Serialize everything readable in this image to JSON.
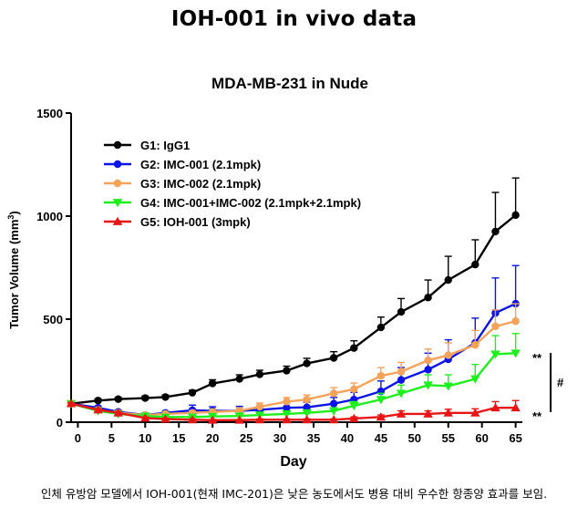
{
  "page": {
    "title": "IOH-001 in vivo data",
    "caption": "인체 유방암 모델에서 IOH-001(현재 IMC-201)은 낮은 농도에서도 병용 대비 우수한 항종양 효과를 보임."
  },
  "chart_data": {
    "type": "line",
    "title": "MDA-MB-231 in Nude",
    "xlabel": "Day",
    "ylabel": "Tumor Volume (mm",
    "ylabel_sup": "3",
    "ylabel_end": ")",
    "xlim": [
      -1,
      66
    ],
    "ylim": [
      0,
      1500
    ],
    "xticks": [
      0,
      5,
      10,
      15,
      20,
      25,
      30,
      35,
      40,
      45,
      50,
      55,
      60,
      65
    ],
    "yticks": [
      0,
      500,
      1000,
      1500
    ],
    "grid": false,
    "legend_position": "top-left",
    "series": [
      {
        "name": "G1: IgG1",
        "color": "#000000",
        "marker": "circle",
        "x": [
          -1,
          3,
          6,
          10,
          13,
          17,
          20,
          24,
          27,
          31,
          34,
          38,
          41,
          45,
          48,
          52,
          55,
          59,
          62,
          65
        ],
        "y": [
          90,
          105,
          112,
          117,
          122,
          143,
          188,
          210,
          232,
          250,
          285,
          312,
          360,
          460,
          535,
          605,
          690,
          765,
          925,
          1005
        ],
        "err": [
          5,
          8,
          8,
          10,
          10,
          12,
          18,
          20,
          20,
          22,
          25,
          30,
          35,
          50,
          65,
          85,
          115,
          120,
          190,
          180
        ]
      },
      {
        "name": "G2: IMC-001 (2.1mpk)",
        "color": "#0a14e6",
        "marker": "circle",
        "x": [
          -1,
          3,
          6,
          10,
          13,
          17,
          20,
          24,
          27,
          31,
          34,
          38,
          41,
          45,
          48,
          52,
          55,
          59,
          62,
          65
        ],
        "y": [
          90,
          70,
          50,
          35,
          45,
          58,
          55,
          55,
          60,
          70,
          72,
          90,
          110,
          150,
          205,
          255,
          305,
          385,
          530,
          575
        ],
        "err": [
          5,
          8,
          8,
          6,
          8,
          25,
          20,
          22,
          20,
          25,
          25,
          30,
          35,
          50,
          60,
          80,
          95,
          120,
          170,
          185
        ]
      },
      {
        "name": "G3: IMC-002 (2.1mpk)",
        "color": "#f5a25b",
        "marker": "circle",
        "x": [
          -1,
          3,
          6,
          10,
          13,
          17,
          20,
          24,
          27,
          31,
          34,
          38,
          41,
          45,
          48,
          52,
          55,
          59,
          62,
          65
        ],
        "y": [
          90,
          60,
          45,
          35,
          40,
          45,
          50,
          55,
          75,
          100,
          110,
          140,
          160,
          225,
          245,
          300,
          325,
          375,
          465,
          490
        ],
        "err": [
          5,
          8,
          6,
          6,
          8,
          10,
          12,
          15,
          18,
          20,
          22,
          28,
          30,
          40,
          45,
          55,
          60,
          70,
          80,
          85
        ]
      },
      {
        "name": "G4: IMC-001+IMC-002 (2.1mpk+2.1mpk)",
        "color": "#1ef01e",
        "marker": "triangle-down",
        "x": [
          -1,
          3,
          6,
          10,
          13,
          17,
          20,
          24,
          27,
          31,
          34,
          38,
          41,
          45,
          48,
          52,
          55,
          59,
          62,
          65
        ],
        "y": [
          90,
          55,
          40,
          30,
          25,
          25,
          28,
          30,
          35,
          40,
          45,
          55,
          80,
          110,
          140,
          180,
          175,
          210,
          330,
          335
        ],
        "err": [
          5,
          6,
          6,
          5,
          5,
          6,
          6,
          8,
          10,
          12,
          12,
          15,
          20,
          30,
          40,
          50,
          55,
          70,
          90,
          95
        ]
      },
      {
        "name": "G5: IOH-001 (3mpk)",
        "color": "#e81515",
        "marker": "triangle-up",
        "x": [
          -1,
          3,
          6,
          10,
          13,
          17,
          20,
          24,
          27,
          31,
          34,
          38,
          41,
          45,
          48,
          52,
          55,
          59,
          62,
          65
        ],
        "y": [
          90,
          60,
          45,
          20,
          15,
          12,
          10,
          10,
          12,
          12,
          12,
          12,
          18,
          25,
          40,
          40,
          45,
          45,
          70,
          70
        ],
        "err": [
          5,
          6,
          6,
          5,
          4,
          4,
          3,
          3,
          4,
          4,
          4,
          4,
          8,
          10,
          15,
          15,
          18,
          20,
          30,
          35
        ]
      }
    ],
    "annotations": {
      "upper": "**",
      "lower": "**",
      "bracket": "#"
    }
  }
}
